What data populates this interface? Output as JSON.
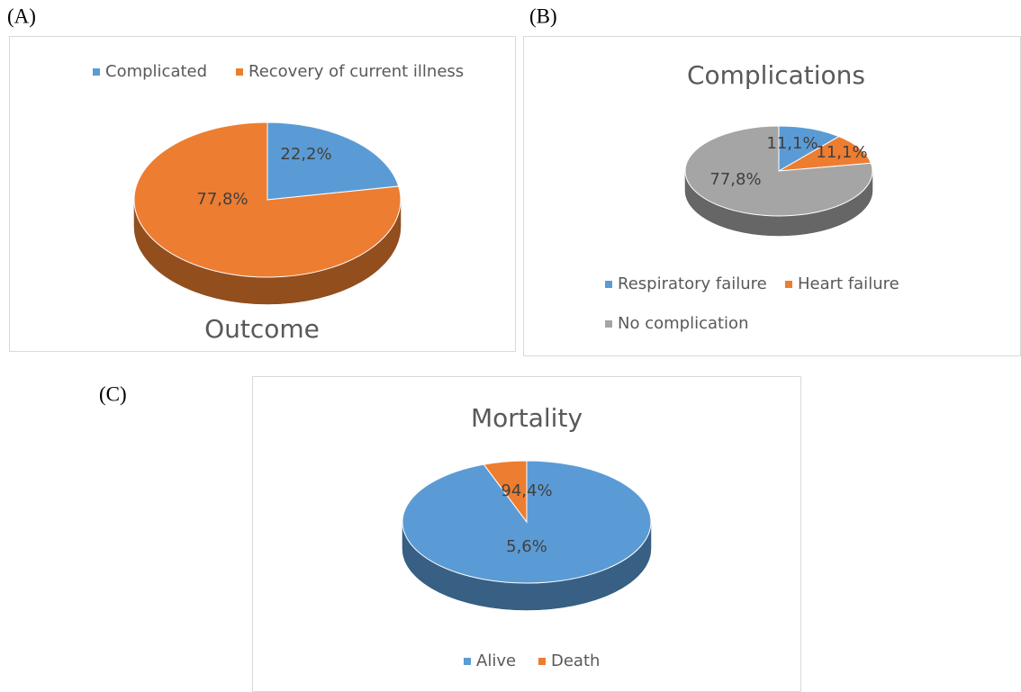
{
  "chart_data": [
    {
      "type": "pie",
      "panel_label": "(A)",
      "title": "Outcome",
      "categories": [
        "Complicated",
        "Recovery of current illness"
      ],
      "values": [
        22.2,
        77.8
      ],
      "value_labels": [
        "22,2%",
        "77,8%"
      ],
      "colors": [
        "#5b9bd5",
        "#ed7d31"
      ],
      "legend": "top"
    },
    {
      "type": "pie",
      "panel_label": "(B)",
      "title": "Complications",
      "categories": [
        "Respiratory failure",
        "Heart failure",
        "No complication"
      ],
      "values": [
        11.1,
        11.1,
        77.8
      ],
      "value_labels": [
        "11,1%",
        "11,1%",
        "77,8%"
      ],
      "colors": [
        "#5b9bd5",
        "#ed7d31",
        "#a5a5a5"
      ],
      "legend": "bottom"
    },
    {
      "type": "pie",
      "panel_label": "(C)",
      "title": "Mortality",
      "categories": [
        "Alive",
        "Death"
      ],
      "values": [
        94.4,
        5.6
      ],
      "value_labels": [
        "94,4%",
        "5,6%"
      ],
      "colors": [
        "#5b9bd5",
        "#ed7d31"
      ],
      "legend": "bottom"
    }
  ]
}
